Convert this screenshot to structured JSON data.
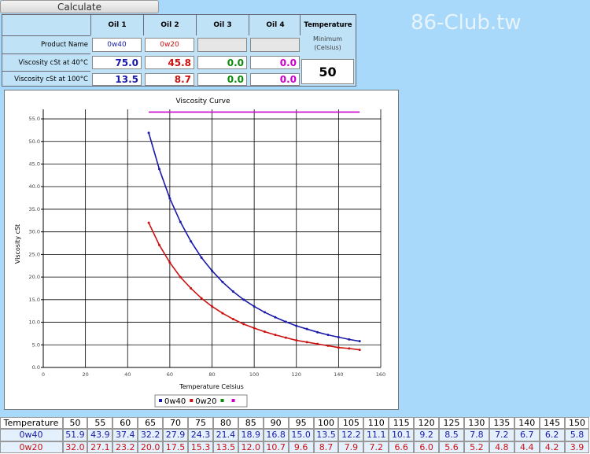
{
  "watermark": "86-Club.tw",
  "form": {
    "button": "Calculate",
    "headers": [
      "Oil 1",
      "Oil 2",
      "Oil 3",
      "Oil 4"
    ],
    "temperature_header": "Temperature",
    "rows": [
      {
        "label": "Product Name",
        "cells": [
          "0w40",
          "0w20",
          null,
          null
        ]
      },
      {
        "label": "Viscosity cSt at 40°C",
        "cells": [
          "75.0",
          "45.8",
          "0.0",
          "0.0"
        ]
      },
      {
        "label": "Viscosity cSt at 100°C",
        "cells": [
          "13.5",
          "8.7",
          "0.0",
          "0.0"
        ]
      }
    ],
    "temperature_note": [
      "Minimum",
      "(Celsius)"
    ],
    "temperature_value": "50"
  },
  "chart_data": {
    "type": "line",
    "title": "Viscosity Curve",
    "x_label": "Temperature Celsius",
    "y_label": "Viscosity cSt",
    "x": [
      50,
      55,
      60,
      65,
      70,
      75,
      80,
      85,
      90,
      95,
      100,
      105,
      110,
      115,
      120,
      125,
      130,
      135,
      140,
      145,
      150
    ],
    "series": [
      {
        "name": "0w40",
        "color": "#1a1aa8",
        "values": [
          51.9,
          43.9,
          37.4,
          32.2,
          27.9,
          24.3,
          21.4,
          18.9,
          16.8,
          15.0,
          13.5,
          12.2,
          11.1,
          10.1,
          9.2,
          8.5,
          7.8,
          7.2,
          6.7,
          6.2,
          5.8
        ],
        "value_labels": [
          "51.9",
          "43.9",
          "37.4",
          "32.2",
          "27.9",
          "24.3",
          "21.4",
          "18.9",
          "16.8",
          "15.0",
          "13.5",
          "12.2",
          "11.1",
          "10.1",
          "9.2",
          "8.5",
          "7.8",
          "7.2",
          "6.7",
          "6.2",
          "5.8"
        ]
      },
      {
        "name": "0w20",
        "color": "#cc1111",
        "values": [
          32.0,
          27.1,
          23.2,
          20.0,
          17.5,
          15.3,
          13.5,
          12.0,
          10.7,
          9.6,
          8.7,
          7.9,
          7.2,
          6.6,
          6.0,
          5.6,
          5.2,
          4.8,
          4.4,
          4.2,
          3.9
        ],
        "value_labels": [
          "32.0",
          "27.1",
          "23.2",
          "20.0",
          "17.5",
          "15.3",
          "13.5",
          "12.0",
          "10.7",
          "9.6",
          "8.7",
          "7.9",
          "7.2",
          "6.6",
          "6.0",
          "5.6",
          "5.2",
          "4.8",
          "4.4",
          "4.2",
          "3.9"
        ]
      },
      {
        "color": "#0a8a0a",
        "values": [
          null,
          null,
          null,
          null,
          null,
          null,
          null,
          null,
          null,
          null,
          null,
          null,
          null,
          null,
          null,
          null,
          null,
          null,
          null,
          null,
          null
        ]
      },
      {
        "color": "#cc00cc",
        "values": [
          56.5,
          56.5,
          56.5,
          56.5,
          56.5,
          56.5,
          56.5,
          56.5,
          56.5,
          56.5,
          56.5,
          56.5,
          56.5,
          56.5,
          56.5,
          56.5,
          56.5,
          56.5,
          56.5,
          56.5,
          56.5
        ]
      }
    ],
    "xlim": [
      0,
      160
    ],
    "xticks": [
      0,
      20,
      40,
      60,
      80,
      100,
      120,
      140,
      160
    ],
    "ylim": [
      0,
      57.1
    ],
    "yticks": [
      {
        "value": 0,
        "label": "0.0"
      },
      {
        "value": 5,
        "label": "5.0"
      },
      {
        "value": 10,
        "label": "10.0"
      },
      {
        "value": 15,
        "label": "15.0"
      },
      {
        "value": 20,
        "label": "20.0"
      },
      {
        "value": 25,
        "label": "25.0"
      },
      {
        "value": 30,
        "label": "30.0"
      },
      {
        "value": 35,
        "label": "35.0"
      },
      {
        "value": 40,
        "label": "40.0"
      },
      {
        "value": 45,
        "label": "45.0"
      },
      {
        "value": 50,
        "label": "50.0"
      },
      {
        "value": 55,
        "label": "55.0"
      }
    ],
    "grid": true,
    "legend": "bottom"
  },
  "table": {
    "header": "Temperature"
  }
}
